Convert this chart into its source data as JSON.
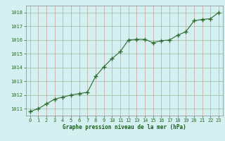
{
  "x": [
    0,
    1,
    2,
    3,
    4,
    5,
    6,
    7,
    8,
    9,
    10,
    11,
    12,
    13,
    14,
    15,
    16,
    17,
    18,
    19,
    20,
    21,
    22,
    23
  ],
  "y": [
    1010.8,
    1011.0,
    1011.35,
    1011.7,
    1011.85,
    1012.0,
    1012.1,
    1012.2,
    1013.35,
    1014.05,
    1014.65,
    1015.15,
    1016.0,
    1016.05,
    1016.05,
    1015.8,
    1015.95,
    1016.0,
    1016.35,
    1016.6,
    1017.4,
    1017.5,
    1017.55,
    1018.0
  ],
  "line_color": "#2d6a2d",
  "marker_color": "#2d6a2d",
  "bg_color": "#d4f0f0",
  "grid_color_v": "#c8a0a0",
  "grid_color_h": "#a0b8a0",
  "xlabel": "Graphe pression niveau de la mer (hPa)",
  "xlabel_color": "#1a5c1a",
  "ylabel_ticks": [
    1011,
    1012,
    1013,
    1014,
    1015,
    1016,
    1017,
    1018
  ],
  "xlim": [
    -0.5,
    23.5
  ],
  "ylim": [
    1010.5,
    1018.5
  ],
  "tick_color": "#2d6a2d",
  "tick_label_color": "#2d6a2d",
  "spine_color": "#888888"
}
